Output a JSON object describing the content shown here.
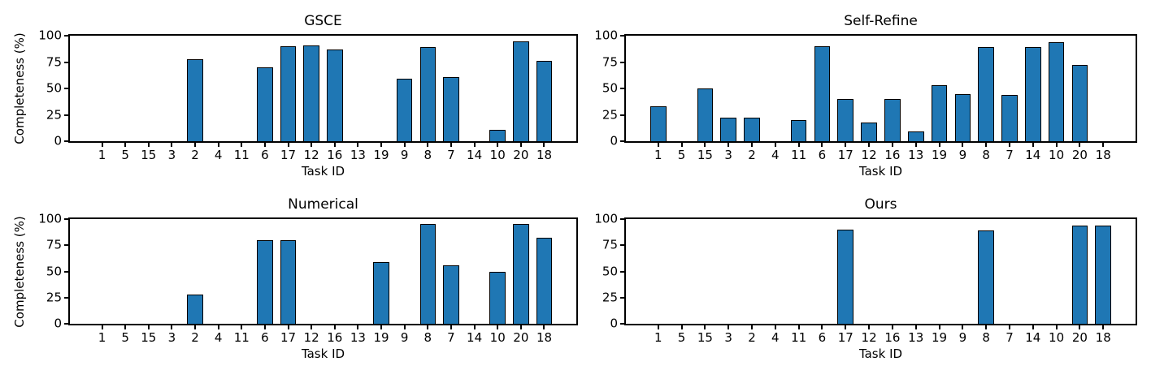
{
  "style": {
    "bar_fill": "#1f77b4",
    "bar_edge": "#000000",
    "axis_color": "#000000",
    "text_color": "#000000",
    "background": "#ffffff"
  },
  "chart_data": [
    {
      "type": "bar",
      "title": "GSCE",
      "xlabel": "Task ID",
      "ylabel": "Completeness (%)",
      "categories": [
        "1",
        "5",
        "15",
        "3",
        "2",
        "4",
        "11",
        "6",
        "17",
        "12",
        "16",
        "13",
        "19",
        "9",
        "8",
        "7",
        "14",
        "10",
        "20",
        "18"
      ],
      "values": [
        0,
        0,
        0,
        0,
        78,
        0,
        0,
        70,
        90,
        91,
        87,
        0,
        0,
        59,
        89,
        61,
        0,
        11,
        95,
        76
      ],
      "ylim": [
        0,
        100
      ],
      "yticks": [
        0,
        25,
        50,
        75,
        100
      ],
      "grid": false,
      "legend": null
    },
    {
      "type": "bar",
      "title": "Self-Refine",
      "xlabel": "Task ID",
      "categories": [
        "1",
        "5",
        "15",
        "3",
        "2",
        "4",
        "11",
        "6",
        "17",
        "12",
        "16",
        "13",
        "19",
        "9",
        "8",
        "7",
        "14",
        "10",
        "20",
        "18"
      ],
      "values": [
        33,
        0,
        50,
        22,
        22,
        0,
        20,
        90,
        40,
        18,
        40,
        9,
        53,
        45,
        89,
        44,
        89,
        94,
        72,
        0
      ],
      "ylim": [
        0,
        100
      ],
      "yticks": [
        0,
        25,
        50,
        75,
        100
      ],
      "grid": false,
      "legend": null
    },
    {
      "type": "bar",
      "title": "Numerical",
      "xlabel": "Task ID",
      "ylabel": "Completeness (%)",
      "categories": [
        "1",
        "5",
        "15",
        "3",
        "2",
        "4",
        "11",
        "6",
        "17",
        "12",
        "16",
        "13",
        "19",
        "9",
        "8",
        "7",
        "14",
        "10",
        "20",
        "18"
      ],
      "values": [
        0,
        0,
        0,
        0,
        28,
        0,
        0,
        80,
        80,
        0,
        0,
        0,
        59,
        0,
        95,
        56,
        0,
        50,
        95,
        82
      ],
      "ylim": [
        0,
        100
      ],
      "yticks": [
        0,
        25,
        50,
        75,
        100
      ],
      "grid": false,
      "legend": null
    },
    {
      "type": "bar",
      "title": "Ours",
      "xlabel": "Task ID",
      "categories": [
        "1",
        "5",
        "15",
        "3",
        "2",
        "4",
        "11",
        "6",
        "17",
        "12",
        "16",
        "13",
        "19",
        "9",
        "8",
        "7",
        "14",
        "10",
        "20",
        "18"
      ],
      "values": [
        0,
        0,
        0,
        0,
        0,
        0,
        0,
        0,
        90,
        0,
        0,
        0,
        0,
        0,
        89,
        0,
        0,
        0,
        94,
        94
      ],
      "ylim": [
        0,
        100
      ],
      "yticks": [
        0,
        25,
        50,
        75,
        100
      ],
      "grid": false,
      "legend": null
    }
  ]
}
